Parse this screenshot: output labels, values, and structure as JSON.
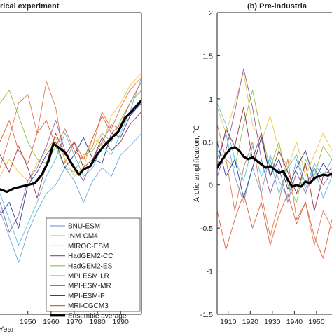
{
  "chart_data": [
    {
      "type": "line",
      "title": "rical experiment",
      "xlabel": "Year",
      "xlim": [
        1938,
        1999
      ],
      "xticks": [
        1950,
        1960,
        1970,
        1980,
        1990
      ],
      "tick_labels": [
        "1950",
        "1960",
        "1970",
        "1980",
        "1990"
      ],
      "legend_position": "lower-right",
      "series": [
        {
          "name": "BNU-ESM",
          "color": "#6fa8dc",
          "x": [
            1938,
            1942,
            1946,
            1950,
            1954,
            1958,
            1962,
            1966,
            1970,
            1974,
            1978,
            1982,
            1986,
            1990,
            1994,
            1999
          ],
          "y": [
            -0.3,
            -0.6,
            -0.9,
            -0.55,
            -0.3,
            -0.1,
            0.0,
            0.2,
            0.05,
            -0.2,
            0.05,
            0.2,
            0.1,
            0.35,
            0.45,
            0.6
          ]
        },
        {
          "name": "INM-CM4",
          "color": "#e07a50",
          "x": [
            1938,
            1942,
            1946,
            1950,
            1954,
            1958,
            1962,
            1966,
            1970,
            1974,
            1978,
            1982,
            1986,
            1990,
            1994,
            1999
          ],
          "y": [
            0.2,
            0.55,
            0.95,
            1.05,
            0.6,
            1.2,
            0.9,
            0.25,
            0.5,
            0.3,
            0.45,
            0.85,
            0.65,
            0.9,
            1.1,
            1.25
          ]
        },
        {
          "name": "MIROC-ESM",
          "color": "#f0c24b",
          "x": [
            1938,
            1942,
            1946,
            1950,
            1954,
            1958,
            1962,
            1966,
            1970,
            1974,
            1978,
            1982,
            1986,
            1990,
            1994,
            1999
          ],
          "y": [
            0.1,
            0.3,
            0.15,
            0.05,
            0.25,
            0.4,
            0.55,
            0.3,
            0.1,
            0.2,
            0.55,
            0.45,
            0.8,
            0.95,
            1.15,
            1.3
          ]
        },
        {
          "name": "HadGEM2-CC",
          "color": "#8e5ea2",
          "x": [
            1938,
            1942,
            1946,
            1950,
            1954,
            1958,
            1962,
            1966,
            1970,
            1974,
            1978,
            1982,
            1986,
            1990,
            1994,
            1999
          ],
          "y": [
            -0.2,
            -0.55,
            -0.35,
            0.05,
            0.2,
            0.45,
            0.75,
            0.4,
            0.2,
            0.05,
            0.3,
            0.5,
            0.7,
            0.65,
            0.85,
            1.0
          ]
        },
        {
          "name": "HadGEM2-ES",
          "color": "#8fbf4a",
          "x": [
            1938,
            1942,
            1946,
            1950,
            1954,
            1958,
            1962,
            1966,
            1970,
            1974,
            1978,
            1982,
            1986,
            1990,
            1994,
            1999
          ],
          "y": [
            0.95,
            1.1,
            0.8,
            0.5,
            0.3,
            0.25,
            0.45,
            0.2,
            0.15,
            0.35,
            0.4,
            0.6,
            0.5,
            0.75,
            0.95,
            1.1
          ]
        },
        {
          "name": "MPI-ESM-LR",
          "color": "#4fc3e0",
          "x": [
            1938,
            1942,
            1946,
            1950,
            1954,
            1958,
            1962,
            1966,
            1970,
            1974,
            1978,
            1982,
            1986,
            1990,
            1994,
            1999
          ],
          "y": [
            -0.1,
            -0.4,
            -0.7,
            -0.45,
            -0.2,
            0.1,
            0.3,
            0.6,
            0.35,
            0.1,
            0.2,
            0.45,
            0.35,
            0.6,
            0.85,
            1.25
          ]
        },
        {
          "name": "MPI-ESM-MR",
          "color": "#9a3048",
          "x": [
            1938,
            1942,
            1946,
            1950,
            1954,
            1958,
            1962,
            1966,
            1970,
            1974,
            1978,
            1982,
            1986,
            1990,
            1994,
            1999
          ],
          "y": [
            0.35,
            0.15,
            0.45,
            0.2,
            -0.15,
            0.25,
            0.6,
            0.35,
            0.5,
            0.2,
            0.3,
            0.55,
            0.4,
            0.5,
            0.7,
            0.85
          ]
        },
        {
          "name": "MPI-ESM-P",
          "color": "#2f3f8f",
          "x": [
            1938,
            1942,
            1946,
            1950,
            1954,
            1958,
            1962,
            1966,
            1970,
            1974,
            1978,
            1982,
            1986,
            1990,
            1994,
            1999
          ],
          "y": [
            -0.35,
            -0.2,
            -0.5,
            0.0,
            0.15,
            0.35,
            0.5,
            0.2,
            0.35,
            0.55,
            0.3,
            0.25,
            0.6,
            0.55,
            0.8,
            0.95
          ]
        },
        {
          "name": "MRI-CGCM3",
          "color": "#e0603a",
          "x": [
            1938,
            1942,
            1946,
            1950,
            1954,
            1958,
            1962,
            1966,
            1970,
            1974,
            1978,
            1982,
            1986,
            1990,
            1994,
            1999
          ],
          "y": [
            0.5,
            0.75,
            0.4,
            0.25,
            0.6,
            0.75,
            0.45,
            0.65,
            0.4,
            0.3,
            0.55,
            0.8,
            0.6,
            0.7,
            0.95,
            1.2
          ]
        },
        {
          "name": "Ensemble average",
          "color": "#000000",
          "x": [
            1938,
            1941,
            1944,
            1947,
            1950,
            1953,
            1956,
            1959,
            1961,
            1963,
            1966,
            1969,
            1972,
            1974,
            1977,
            1980,
            1983,
            1986,
            1989,
            1992,
            1995,
            1999
          ],
          "y": [
            -0.05,
            -0.08,
            -0.04,
            -0.02,
            0.0,
            0.02,
            0.12,
            0.28,
            0.48,
            0.44,
            0.38,
            0.24,
            0.12,
            0.18,
            0.22,
            0.36,
            0.46,
            0.54,
            0.62,
            0.78,
            0.86,
            0.98
          ]
        }
      ]
    },
    {
      "type": "line",
      "title": "(b) Pre-industria",
      "ylabel": "Arctic amplification, °C",
      "xlim": [
        1905,
        1957
      ],
      "ylim": [
        -1.5,
        2
      ],
      "xticks": [
        1910,
        1920,
        1930,
        1940,
        1950
      ],
      "yticks": [
        -1.5,
        -1,
        -0.5,
        0,
        0.5,
        1,
        1.5,
        2
      ],
      "tick_labels": [
        "1910",
        "1920",
        "1930",
        "1940",
        "1950"
      ],
      "ytick_labels": [
        "-1.5",
        "-1",
        "-0.5",
        "0",
        "0.5",
        "1",
        "1.5",
        "2"
      ],
      "series": [
        {
          "name": "BNU-ESM",
          "color": "#6fa8dc",
          "x": [
            1905,
            1909,
            1913,
            1917,
            1921,
            1925,
            1929,
            1933,
            1937,
            1941,
            1945,
            1949,
            1953,
            1957
          ],
          "y": [
            0.3,
            0.6,
            0.1,
            -0.2,
            0.2,
            -0.1,
            0.35,
            0.05,
            -0.15,
            0.3,
            -0.05,
            0.25,
            0.1,
            0.3
          ]
        },
        {
          "name": "INM-CM4",
          "color": "#e07a50",
          "x": [
            1905,
            1909,
            1913,
            1917,
            1921,
            1925,
            1929,
            1933,
            1937,
            1941,
            1945,
            1949,
            1953,
            1957
          ],
          "y": [
            0.7,
            0.3,
            -0.3,
            0.2,
            0.5,
            -0.1,
            -0.6,
            -0.2,
            0.3,
            -0.4,
            -0.2,
            -0.7,
            -0.3,
            -0.5
          ]
        },
        {
          "name": "MIROC-ESM",
          "color": "#f0c24b",
          "x": [
            1905,
            1909,
            1913,
            1917,
            1921,
            1925,
            1929,
            1933,
            1937,
            1941,
            1945,
            1949,
            1953,
            1957
          ],
          "y": [
            0.9,
            0.6,
            0.95,
            1.3,
            0.7,
            0.5,
            0.8,
            0.4,
            0.2,
            0.5,
            0.1,
            0.35,
            0.6,
            0.4
          ]
        },
        {
          "name": "HadGEM2-CC",
          "color": "#8e5ea2",
          "x": [
            1905,
            1909,
            1913,
            1917,
            1921,
            1925,
            1929,
            1933,
            1937,
            1941,
            1945,
            1949,
            1953,
            1957
          ],
          "y": [
            0.1,
            0.4,
            0.85,
            1.35,
            0.9,
            0.3,
            -0.1,
            0.2,
            -0.2,
            0.15,
            -0.1,
            0.2,
            0.0,
            0.15
          ]
        },
        {
          "name": "HadGEM2-ES",
          "color": "#8fbf4a",
          "x": [
            1905,
            1909,
            1913,
            1917,
            1921,
            1925,
            1929,
            1933,
            1937,
            1941,
            1945,
            1949,
            1953,
            1957
          ],
          "y": [
            0.4,
            0.3,
            0.2,
            0.7,
            1.1,
            0.6,
            0.2,
            0.5,
            0.0,
            -0.2,
            0.3,
            0.1,
            0.45,
            0.3
          ]
        },
        {
          "name": "MPI-ESM-LR",
          "color": "#4fc3e0",
          "x": [
            1905,
            1909,
            1913,
            1917,
            1921,
            1925,
            1929,
            1933,
            1937,
            1941,
            1945,
            1949,
            1953,
            1957
          ],
          "y": [
            0.95,
            0.7,
            0.3,
            0.05,
            0.45,
            0.1,
            0.3,
            -0.1,
            0.2,
            0.35,
            0.0,
            0.2,
            -0.15,
            0.1
          ]
        },
        {
          "name": "MPI-ESM-MR",
          "color": "#9a3048",
          "x": [
            1905,
            1909,
            1913,
            1917,
            1921,
            1925,
            1929,
            1933,
            1937,
            1941,
            1945,
            1949,
            1953,
            1957
          ],
          "y": [
            0.2,
            0.65,
            0.45,
            0.9,
            0.3,
            0.6,
            0.1,
            0.4,
            0.15,
            -0.1,
            0.25,
            -0.3,
            0.1,
            0.2
          ]
        },
        {
          "name": "MPI-ESM-P",
          "color": "#2f3f8f",
          "x": [
            1905,
            1909,
            1913,
            1917,
            1921,
            1925,
            1929,
            1933,
            1937,
            1941,
            1945,
            1949,
            1953,
            1957
          ],
          "y": [
            0.5,
            0.1,
            0.3,
            -0.15,
            0.2,
            0.55,
            0.1,
            0.3,
            -0.05,
            0.2,
            0.4,
            0.05,
            0.25,
            0.1
          ]
        },
        {
          "name": "MRI-CGCM3",
          "color": "#e0603a",
          "x": [
            1905,
            1909,
            1913,
            1917,
            1921,
            1925,
            1929,
            1933,
            1937,
            1941,
            1945,
            1949,
            1953,
            1957
          ],
          "y": [
            -0.3,
            -0.75,
            -0.4,
            -0.1,
            -0.5,
            -0.2,
            -0.7,
            -0.35,
            -0.1,
            -0.45,
            -0.2,
            -0.6,
            -0.85,
            -0.4
          ]
        },
        {
          "name": "Ensemble average",
          "color": "#000000",
          "x": [
            1905,
            1907,
            1909,
            1911,
            1913,
            1915,
            1917,
            1919,
            1921,
            1923,
            1925,
            1927,
            1929,
            1931,
            1933,
            1935,
            1937,
            1939,
            1941,
            1943,
            1945,
            1947,
            1949,
            1951,
            1953,
            1955,
            1957
          ],
          "y": [
            0.2,
            0.28,
            0.36,
            0.42,
            0.44,
            0.4,
            0.33,
            0.3,
            0.32,
            0.28,
            0.24,
            0.2,
            0.22,
            0.18,
            0.14,
            0.16,
            0.06,
            -0.02,
            0.0,
            -0.02,
            0.04,
            0.02,
            0.08,
            0.1,
            0.12,
            0.11,
            0.13
          ]
        }
      ]
    }
  ]
}
